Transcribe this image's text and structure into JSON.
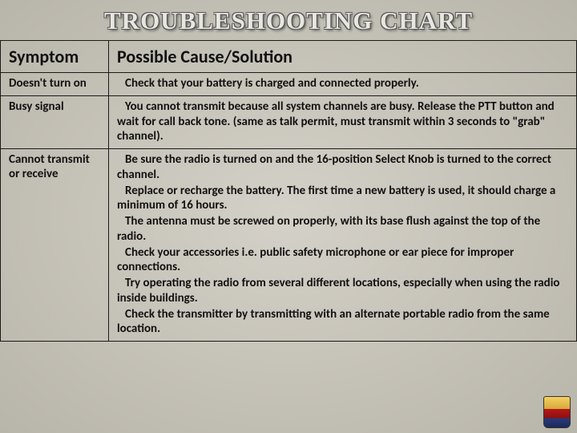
{
  "title": "TROUBLESHOOTING CHART",
  "columns": {
    "symptom": "Symptom",
    "solution": "Possible Cause/Solution"
  },
  "rows": [
    {
      "symptom": "Doesn't turn on",
      "solutions": [
        "Check that your battery is charged and connected properly."
      ]
    },
    {
      "symptom": "Busy signal",
      "solutions": [
        "You cannot transmit because all system channels are busy. Release the PTT button and wait for call back tone. (same as talk permit, must transmit within 3 seconds to \"grab\" channel)."
      ]
    },
    {
      "symptom": "Cannot transmit or receive",
      "solutions": [
        "Be sure the radio is turned on and the 16-position Select Knob is turned to the correct channel.",
        "Replace or recharge the battery. The first time a new battery is used, it should charge a minimum of 16 hours.",
        "The antenna must be screwed on properly, with its base flush against the top of the radio.",
        "Check your accessories i.e. public safety microphone or ear piece for improper connections.",
        "Try operating the radio from several different locations, especially when using the radio inside buildings.",
        "Check the transmitter by transmitting with an alternate portable radio from the same location."
      ]
    }
  ]
}
